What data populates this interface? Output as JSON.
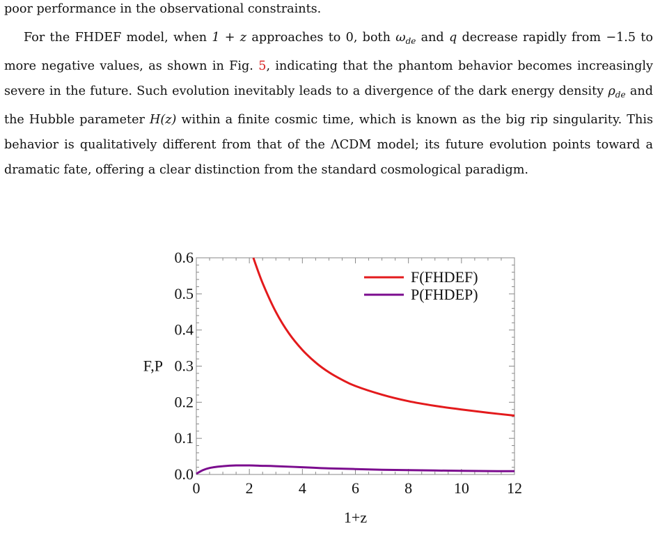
{
  "text": {
    "line0": "poor performance in the observational constraints.",
    "p1": {
      "a": "For the FHDEF model, when ",
      "m1": "1 + z",
      "b": " approaches to 0, both ",
      "m2": "ω",
      "m2sub": "de",
      "c": " and ",
      "m3": "q",
      "d": " decrease rapidly from −1.5 to more negative values, as shown in Fig. ",
      "ref": "5",
      "e": ", indicating that the phantom behavior becomes increasingly severe in the future. Such evolution inevitably leads to a divergence of the dark energy density ",
      "m4": "ρ",
      "m4sub": "de",
      "f": " and the Hubble parameter ",
      "m5": "H(z)",
      "g": " within a finite cosmic time, which is known as the big rip singularity. This behavior is qualitatively different from that of the ΛCDM model; its future evolution points toward a dramatic fate, offering a clear distinction from the standard cosmological paradigm."
    }
  },
  "chart_data": {
    "type": "line",
    "xlabel": "1+z",
    "ylabel": "F,P",
    "xlim": [
      0,
      12
    ],
    "ylim": [
      0,
      0.6
    ],
    "x_ticks": [
      "0",
      "2",
      "4",
      "6",
      "8",
      "10",
      "12"
    ],
    "y_ticks": [
      "0.0",
      "0.1",
      "0.2",
      "0.3",
      "0.4",
      "0.5",
      "0.6"
    ],
    "legend_position": "top-right",
    "series": [
      {
        "name": "F(FHDEF)",
        "color": "#e31a1c",
        "x": [
          2.15,
          2.5,
          3,
          3.5,
          4,
          4.5,
          5,
          5.5,
          6,
          7,
          8,
          9,
          10,
          11,
          12
        ],
        "y": [
          0.6,
          0.53,
          0.45,
          0.39,
          0.345,
          0.31,
          0.283,
          0.262,
          0.245,
          0.221,
          0.203,
          0.19,
          0.18,
          0.171,
          0.163
        ]
      },
      {
        "name": "P(FHDEP)",
        "color": "#7b0c8e",
        "x": [
          0,
          0.25,
          0.5,
          0.75,
          1,
          1.5,
          2,
          2.5,
          3,
          4,
          5,
          6,
          7,
          8,
          9,
          10,
          11,
          12
        ],
        "y": [
          0.002,
          0.012,
          0.018,
          0.021,
          0.023,
          0.025,
          0.025,
          0.024,
          0.023,
          0.02,
          0.017,
          0.015,
          0.013,
          0.012,
          0.011,
          0.01,
          0.0095,
          0.009
        ]
      }
    ]
  }
}
